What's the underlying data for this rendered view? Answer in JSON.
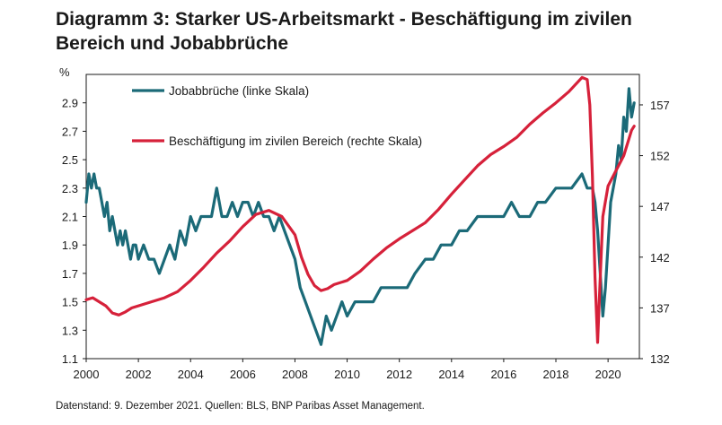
{
  "header": {
    "title": "Diagramm 3: Starker US-Arbeitsmarkt - Beschäftigung im zivilen Bereich und Jobabbrüche"
  },
  "footer": {
    "source": "Datenstand: 9. Dezember 2021.  Quellen: BLS, BNP Paribas Asset Management."
  },
  "chart_data": {
    "type": "line",
    "title": "Diagramm 3: Starker US-Arbeitsmarkt - Beschäftigung im zivilen Bereich und Jobabbrüche",
    "left_axis": {
      "unit_label": "%",
      "min": 1.1,
      "max": 3.1,
      "ticks": [
        "1.1",
        "1.3",
        "1.5",
        "1.7",
        "1.9",
        "2.1",
        "2.3",
        "2.5",
        "2.7",
        "2.9"
      ]
    },
    "right_axis": {
      "min": 132,
      "max": 160,
      "ticks": [
        "132",
        "137",
        "142",
        "147",
        "152",
        "157"
      ]
    },
    "x_axis": {
      "min": 2000,
      "max": 2021.2,
      "ticks": [
        "2000",
        "2002",
        "2004",
        "2006",
        "2008",
        "2010",
        "2012",
        "2014",
        "2016",
        "2018",
        "2020"
      ]
    },
    "series": [
      {
        "name": "Jobabbrüche (linke Skala)",
        "axis": "left",
        "color": "#1b6a78",
        "x": [
          2000.0,
          2000.1,
          2000.2,
          2000.3,
          2000.4,
          2000.5,
          2000.6,
          2000.7,
          2000.8,
          2000.9,
          2001.0,
          2001.1,
          2001.2,
          2001.3,
          2001.4,
          2001.5,
          2001.6,
          2001.7,
          2001.8,
          2001.9,
          2002.0,
          2002.2,
          2002.4,
          2002.6,
          2002.8,
          2003.0,
          2003.2,
          2003.4,
          2003.6,
          2003.8,
          2004.0,
          2004.2,
          2004.4,
          2004.6,
          2004.8,
          2005.0,
          2005.2,
          2005.4,
          2005.6,
          2005.8,
          2006.0,
          2006.2,
          2006.4,
          2006.6,
          2006.8,
          2007.0,
          2007.2,
          2007.4,
          2007.6,
          2007.8,
          2008.0,
          2008.2,
          2008.4,
          2008.6,
          2008.8,
          2009.0,
          2009.2,
          2009.4,
          2009.6,
          2009.8,
          2010.0,
          2010.3,
          2010.6,
          2011.0,
          2011.3,
          2011.6,
          2012.0,
          2012.3,
          2012.6,
          2013.0,
          2013.3,
          2013.6,
          2014.0,
          2014.3,
          2014.6,
          2015.0,
          2015.3,
          2015.6,
          2016.0,
          2016.3,
          2016.6,
          2017.0,
          2017.3,
          2017.6,
          2018.0,
          2018.3,
          2018.6,
          2019.0,
          2019.2,
          2019.3,
          2019.4,
          2019.5,
          2019.6,
          2019.7,
          2019.8,
          2019.9,
          2020.0,
          2020.1,
          2020.2,
          2020.3,
          2020.4,
          2020.5,
          2020.6,
          2020.7,
          2020.8,
          2020.9,
          2021.0
        ],
        "values": [
          2.2,
          2.4,
          2.3,
          2.4,
          2.3,
          2.3,
          2.2,
          2.1,
          2.2,
          2.0,
          2.1,
          2.0,
          1.9,
          2.0,
          1.9,
          2.0,
          1.9,
          1.8,
          1.9,
          1.9,
          1.8,
          1.9,
          1.8,
          1.8,
          1.7,
          1.8,
          1.9,
          1.8,
          2.0,
          1.9,
          2.1,
          2.0,
          2.1,
          2.1,
          2.1,
          2.3,
          2.1,
          2.1,
          2.2,
          2.1,
          2.2,
          2.2,
          2.1,
          2.2,
          2.1,
          2.1,
          2.0,
          2.1,
          2.0,
          1.9,
          1.8,
          1.6,
          1.5,
          1.4,
          1.3,
          1.2,
          1.4,
          1.3,
          1.4,
          1.5,
          1.4,
          1.5,
          1.5,
          1.5,
          1.6,
          1.6,
          1.6,
          1.6,
          1.7,
          1.8,
          1.8,
          1.9,
          1.9,
          2.0,
          2.0,
          2.1,
          2.1,
          2.1,
          2.1,
          2.2,
          2.1,
          2.1,
          2.2,
          2.2,
          2.3,
          2.3,
          2.3,
          2.4,
          2.3,
          2.3,
          2.3,
          2.2,
          2.0,
          1.7,
          1.4,
          1.6,
          1.9,
          2.2,
          2.3,
          2.4,
          2.6,
          2.5,
          2.8,
          2.7,
          3.0,
          2.8,
          2.9
        ]
      },
      {
        "name": "Beschäftigung im zivilen Bereich (rechte Skala)",
        "axis": "right",
        "color": "#d6213a",
        "x": [
          2000.0,
          2000.25,
          2000.5,
          2000.75,
          2001.0,
          2001.25,
          2001.5,
          2001.75,
          2002.0,
          2002.5,
          2003.0,
          2003.5,
          2004.0,
          2004.5,
          2005.0,
          2005.5,
          2006.0,
          2006.5,
          2007.0,
          2007.5,
          2008.0,
          2008.25,
          2008.5,
          2008.75,
          2009.0,
          2009.25,
          2009.5,
          2010.0,
          2010.5,
          2011.0,
          2011.5,
          2012.0,
          2012.5,
          2013.0,
          2013.5,
          2014.0,
          2014.5,
          2015.0,
          2015.5,
          2016.0,
          2016.5,
          2017.0,
          2017.5,
          2018.0,
          2018.5,
          2019.0,
          2019.2,
          2019.3,
          2019.4,
          2019.5,
          2019.6,
          2019.7,
          2019.8,
          2020.0,
          2020.3,
          2020.6,
          2020.9,
          2021.0
        ],
        "values": [
          137.8,
          138.0,
          137.6,
          137.2,
          136.5,
          136.3,
          136.6,
          137.0,
          137.2,
          137.6,
          138.0,
          138.6,
          139.7,
          141.0,
          142.4,
          143.6,
          145.0,
          146.2,
          146.6,
          146.0,
          144.2,
          142.0,
          140.3,
          139.2,
          138.7,
          138.9,
          139.3,
          139.7,
          140.6,
          141.8,
          142.9,
          143.8,
          144.6,
          145.4,
          146.7,
          148.2,
          149.6,
          151.0,
          152.1,
          152.9,
          153.8,
          155.1,
          156.2,
          157.2,
          158.3,
          159.7,
          159.5,
          157.0,
          150.0,
          140.0,
          133.6,
          140.0,
          146.0,
          149.0,
          150.5,
          152.0,
          154.5,
          154.9
        ]
      }
    ],
    "legend": [
      "Jobabbrüche (linke Skala)",
      "Beschäftigung im zivilen Bereich (rechte Skala)"
    ],
    "legend_position": "top-left",
    "grid": false
  }
}
